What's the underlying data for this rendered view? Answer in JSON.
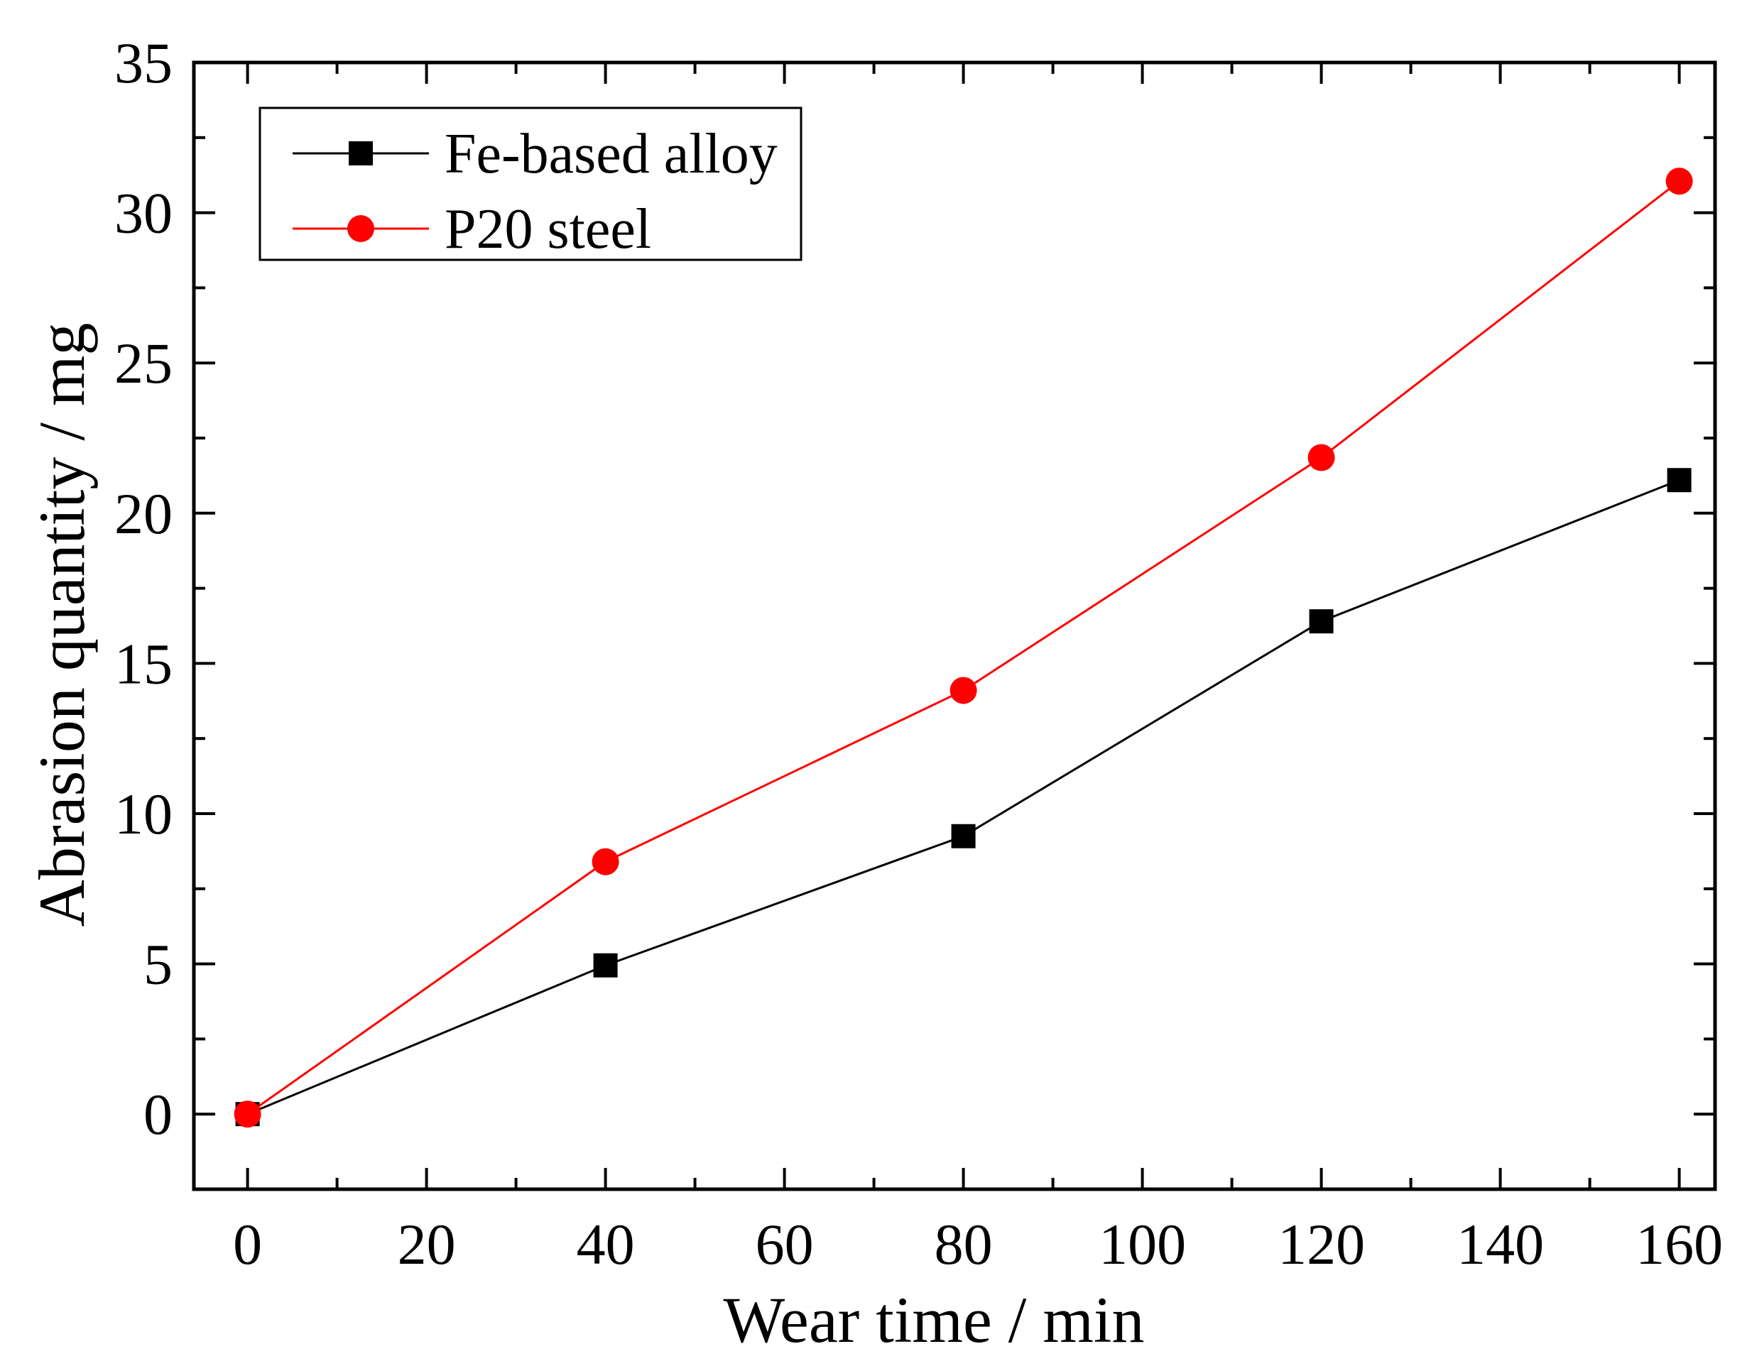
{
  "chart_data": {
    "type": "line",
    "title": "",
    "xlabel": "Wear time / min",
    "ylabel": "Abrasion quantity / mg",
    "xlim": [
      -6,
      164
    ],
    "ylim": [
      -2.5,
      35
    ],
    "xticks": [
      0,
      20,
      40,
      60,
      80,
      100,
      120,
      140,
      160
    ],
    "xtick_labels": [
      "0",
      "20",
      "40",
      "60",
      "80",
      "100",
      "120",
      "140",
      "160"
    ],
    "yticks": [
      0,
      5,
      10,
      15,
      20,
      25,
      30,
      35
    ],
    "ytick_labels": [
      "0",
      "5",
      "10",
      "15",
      "20",
      "25",
      "30",
      "35"
    ],
    "grid": false,
    "legend_position": "top-left",
    "x": [
      0,
      40,
      80,
      120,
      160
    ],
    "series": [
      {
        "name": "Fe-based alloy",
        "values": [
          0,
          4.95,
          9.25,
          16.4,
          21.1
        ],
        "color": "#000000",
        "marker": "square"
      },
      {
        "name": "P20 steel",
        "values": [
          0,
          8.4,
          14.1,
          21.85,
          31.05
        ],
        "color": "#ff0000",
        "marker": "circle"
      }
    ]
  }
}
